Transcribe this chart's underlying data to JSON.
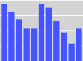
{
  "bar_values": [
    30,
    26,
    22,
    17,
    17,
    30,
    28,
    21,
    15,
    9,
    17
  ],
  "bar_color": "#4455ff",
  "background_color": "#d4d4d4",
  "ylim": [
    0,
    32
  ],
  "figsize": [
    1.2,
    0.88
  ],
  "dpi": 100,
  "grid_color": "#ffffff",
  "grid_linewidth": 0.8,
  "grid_levels": [
    8,
    16,
    24,
    32
  ]
}
